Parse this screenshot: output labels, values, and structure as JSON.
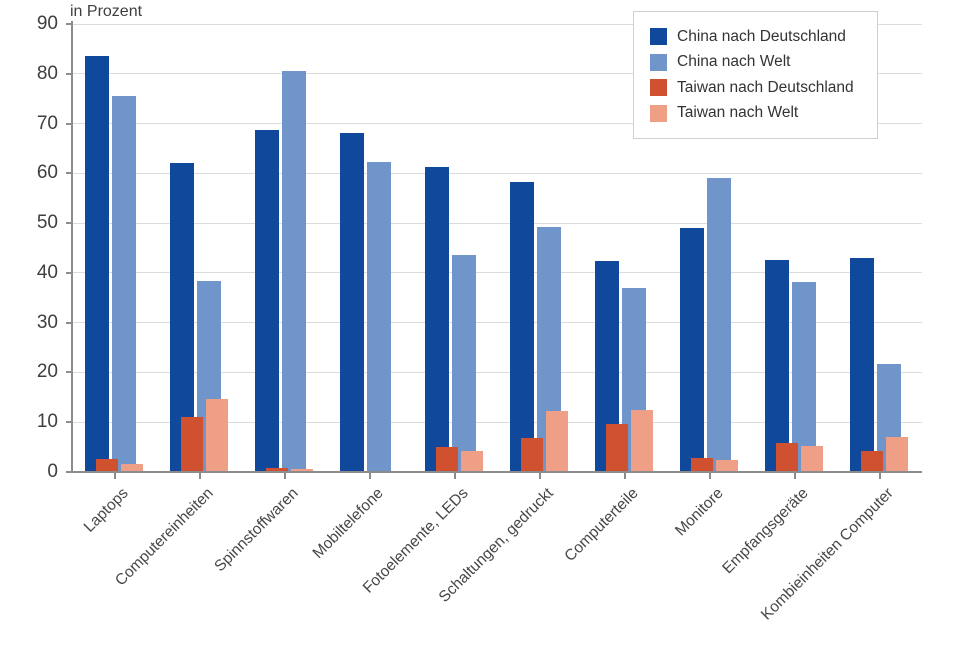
{
  "chart_data": {
    "type": "bar",
    "title": "",
    "xlabel": "",
    "ylabel": "in Prozent",
    "ylim": [
      0,
      90
    ],
    "ytick_step": 10,
    "yticks": [
      0,
      10,
      20,
      30,
      40,
      50,
      60,
      70,
      80,
      90
    ],
    "grid": true,
    "legend_position": "top-right",
    "categories": [
      "Laptops",
      "Computereinheiten",
      "Spinnstoffwaren",
      "Mobiltelefone",
      "Fotoelemente, LEDs",
      "Schaltungen, gedruckt",
      "Computerteile",
      "Monitore",
      "Empfangsgeräte",
      "Kombieinheiten Computer"
    ],
    "series": [
      {
        "key": "china-deutschland",
        "name": "China nach Deutschland",
        "color": "#10489c",
        "values": [
          83.3,
          61.8,
          68.6,
          68.0,
          61.0,
          58.0,
          42.1,
          48.8,
          42.3,
          42.8
        ]
      },
      {
        "key": "china-welt",
        "name": "China nach Welt",
        "color": "#7095ca",
        "values": [
          75.3,
          38.2,
          80.4,
          62.0,
          43.3,
          49.0,
          36.7,
          58.9,
          37.9,
          21.5
        ]
      },
      {
        "key": "taiwan-deutschland",
        "name": "Taiwan nach Deutschland",
        "color": "#cf5130",
        "values": [
          2.5,
          10.8,
          0.7,
          0,
          4.8,
          6.6,
          9.5,
          2.7,
          5.6,
          4.0
        ]
      },
      {
        "key": "taiwan-welt",
        "name": "Taiwan nach Welt",
        "color": "#ef9f85",
        "values": [
          1.5,
          14.5,
          0.4,
          0,
          4.0,
          12.1,
          12.2,
          2.2,
          5.0,
          6.8
        ]
      }
    ]
  }
}
